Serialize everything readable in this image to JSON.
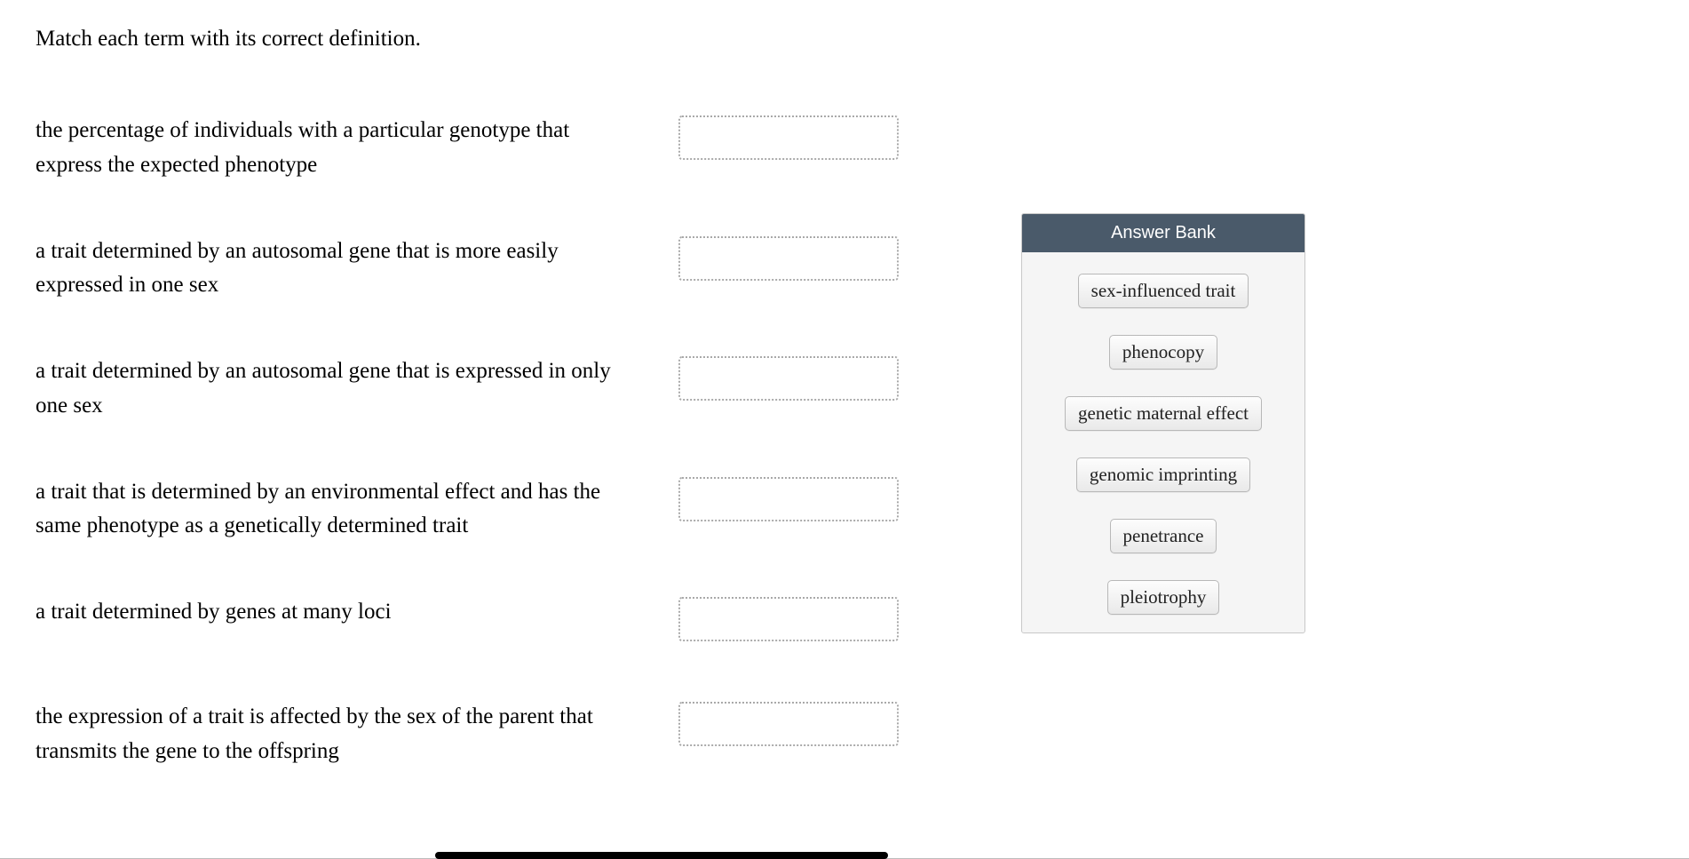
{
  "instruction": "Match each term with its correct definition.",
  "definitions": [
    {
      "text": "the percentage of individuals with a particular genotype that express the expected phenotype"
    },
    {
      "text": "a trait determined by an autosomal gene that is more easily expressed in one sex"
    },
    {
      "text": "a trait determined by an autosomal gene that is expressed in only one sex"
    },
    {
      "text": "a trait that is determined by an environmental effect and has the same phenotype as a genetically determined trait"
    },
    {
      "text": "a trait determined by genes at many loci"
    },
    {
      "text": "the expression of a trait is affected by the sex of the parent that transmits the gene to the offspring"
    }
  ],
  "answer_bank": {
    "title": "Answer Bank",
    "items": [
      "sex-influenced trait",
      "phenocopy",
      "genetic maternal effect",
      "genomic imprinting",
      "penetrance",
      "pleiotrophy"
    ]
  },
  "colors": {
    "bank_header_bg": "#4a5a6a",
    "bank_header_text": "#ffffff",
    "bank_body_bg": "#f5f5f5",
    "drop_border": "#a9a9a9",
    "chip_bg_top": "#fdfdfd",
    "chip_bg_bottom": "#e9e9e9",
    "chip_border": "#b8b8b8",
    "text": "#000000"
  }
}
